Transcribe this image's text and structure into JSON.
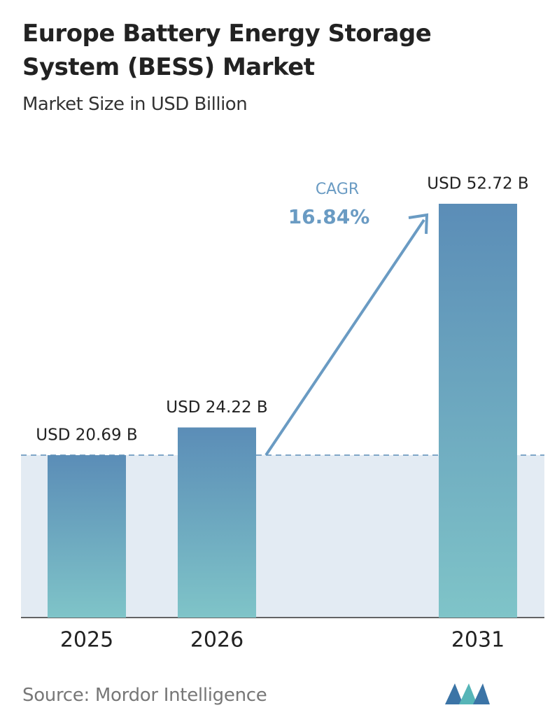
{
  "chart_data": {
    "type": "bar",
    "title": "Europe Battery Energy Storage System (BESS) Market",
    "subtitle": "Market Size in USD Billion",
    "categories": [
      "2025",
      "2026",
      "2031"
    ],
    "values": [
      20.69,
      24.22,
      52.72
    ],
    "value_labels": [
      "USD 20.69 B",
      "USD 24.22 B",
      "USD 52.72 B"
    ],
    "annotation": {
      "label": "CAGR",
      "value": "16.84%"
    },
    "source": "Source: Mordor Intelligence"
  }
}
